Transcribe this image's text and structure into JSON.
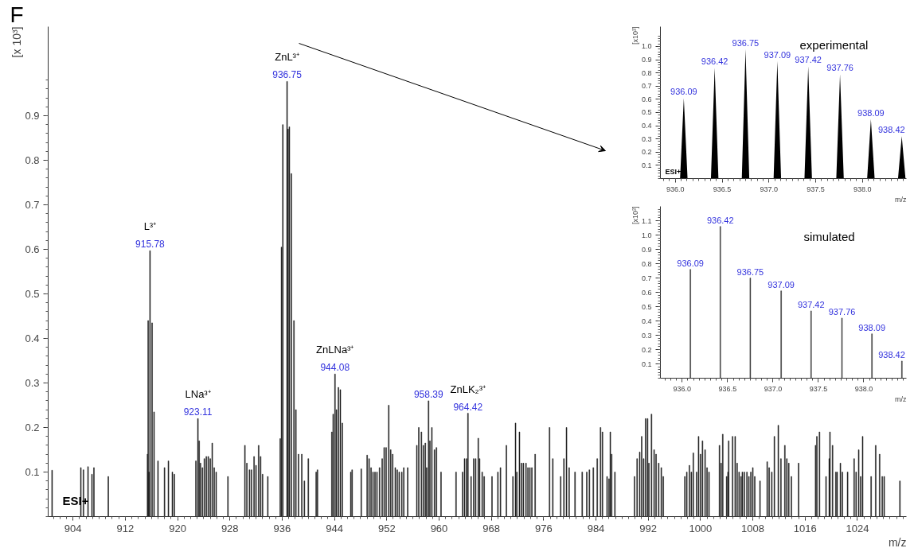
{
  "chart_data": [
    {
      "type": "bar",
      "title": "F",
      "xlabel": "m/z",
      "ylabel": "[x 10³]",
      "x": [
        900.8,
        905.2,
        905.6,
        906.3,
        906.9,
        907.2,
        909.4,
        915.4,
        915.5,
        915.6,
        915.78,
        916.1,
        916.4,
        917.0,
        918.0,
        918.6,
        919.2,
        919.5,
        922.8,
        923.11,
        923.3,
        923.5,
        923.8,
        924.1,
        924.4,
        924.7,
        925.0,
        925.3,
        925.6,
        925.9,
        927.7,
        930.3,
        930.6,
        931.0,
        931.3,
        931.7,
        932.0,
        932.4,
        932.7,
        933.0,
        933.8,
        935.7,
        935.9,
        936.1,
        936.75,
        936.9,
        937.1,
        937.4,
        937.8,
        938.1,
        938.5,
        939.0,
        939.4,
        940.0,
        941.2,
        941.4,
        943.6,
        943.8,
        944.08,
        944.3,
        944.6,
        944.9,
        945.2,
        946.5,
        946.7,
        948.1,
        949.0,
        949.3,
        949.6,
        949.9,
        950.2,
        950.5,
        950.9,
        951.3,
        951.6,
        951.9,
        952.3,
        952.6,
        952.9,
        953.3,
        953.6,
        953.9,
        954.3,
        954.6,
        955.2,
        956.6,
        956.9,
        957.3,
        957.6,
        957.9,
        958.1,
        958.39,
        958.6,
        958.9,
        959.3,
        959.6,
        960.3,
        962.6,
        963.6,
        963.9,
        964.2,
        964.42,
        964.9,
        965.3,
        965.6,
        966.0,
        966.2,
        966.6,
        966.9,
        968.1,
        969.0,
        969.4,
        970.3,
        971.3,
        971.7,
        971.9,
        972.3,
        972.6,
        972.9,
        973.3,
        973.6,
        973.9,
        974.2,
        974.7,
        976.9,
        977.4,
        978.6,
        979.1,
        979.5,
        979.9,
        980.8,
        981.9,
        982.6,
        983.0,
        983.6,
        984.2,
        984.7,
        985.0,
        985.7,
        986.0,
        986.2,
        986.4,
        986.9,
        989.9,
        990.3,
        990.7,
        991.0,
        991.3,
        991.6,
        991.9,
        992.1,
        992.5,
        992.9,
        993.2,
        993.6,
        994.0,
        994.3,
        997.6,
        997.9,
        998.3,
        998.6,
        998.9,
        999.4,
        999.7,
        1000.0,
        1000.3,
        1000.7,
        1001.0,
        1001.3,
        1002.9,
        1003.15,
        1003.4,
        1004.0,
        1004.2,
        1004.3,
        1004.9,
        1005.3,
        1005.6,
        1005.9,
        1006.2,
        1006.4,
        1006.7,
        1007.1,
        1007.4,
        1007.7,
        1008.0,
        1008.3,
        1009.1,
        1010.2,
        1010.5,
        1010.9,
        1011.3,
        1011.9,
        1012.3,
        1012.9,
        1013.2,
        1013.5,
        1013.9,
        1015.0,
        1017.6,
        1017.8,
        1018.2,
        1019.2,
        1019.7,
        1019.8,
        1020.2,
        1020.7,
        1020.9,
        1021.4,
        1021.7,
        1022.5,
        1023.5,
        1023.8,
        1024.2,
        1024.5,
        1024.8,
        1026.1,
        1026.8,
        1027.4,
        1027.8,
        1028.1,
        1030.5
      ],
      "series": [
        {
          "color": "#1a1a1a",
          "values": [
            0.104,
            0.11,
            0.105,
            0.112,
            0.095,
            0.11,
            0.09,
            0.14,
            0.44,
            0.1,
            0.597,
            0.435,
            0.235,
            0.125,
            0.11,
            0.125,
            0.1,
            0.095,
            0.125,
            0.22,
            0.17,
            0.12,
            0.11,
            0.13,
            0.135,
            0.135,
            0.13,
            0.165,
            0.11,
            0.1,
            0.09,
            0.16,
            0.12,
            0.105,
            0.105,
            0.135,
            0.115,
            0.16,
            0.135,
            0.095,
            0.09,
            0.175,
            0.605,
            0.88,
            0.977,
            0.87,
            0.875,
            0.77,
            0.44,
            0.24,
            0.14,
            0.14,
            0.08,
            0.13,
            0.1,
            0.105,
            0.19,
            0.23,
            0.32,
            0.24,
            0.29,
            0.285,
            0.21,
            0.1,
            0.105,
            0.107,
            0.138,
            0.13,
            0.11,
            0.1,
            0.1,
            0.1,
            0.11,
            0.13,
            0.155,
            0.155,
            0.25,
            0.15,
            0.14,
            0.11,
            0.105,
            0.1,
            0.1,
            0.11,
            0.11,
            0.16,
            0.2,
            0.19,
            0.16,
            0.165,
            0.11,
            0.26,
            0.17,
            0.2,
            0.15,
            0.155,
            0.1,
            0.1,
            0.1,
            0.13,
            0.13,
            0.232,
            0.09,
            0.13,
            0.13,
            0.176,
            0.13,
            0.1,
            0.09,
            0.09,
            0.1,
            0.11,
            0.16,
            0.09,
            0.21,
            0.1,
            0.19,
            0.12,
            0.12,
            0.12,
            0.11,
            0.11,
            0.11,
            0.14,
            0.2,
            0.13,
            0.09,
            0.13,
            0.2,
            0.11,
            0.1,
            0.1,
            0.1,
            0.105,
            0.11,
            0.13,
            0.2,
            0.19,
            0.09,
            0.085,
            0.19,
            0.14,
            0.1,
            0.09,
            0.13,
            0.145,
            0.18,
            0.13,
            0.22,
            0.22,
            0.12,
            0.23,
            0.15,
            0.14,
            0.12,
            0.11,
            0.09,
            0.09,
            0.1,
            0.115,
            0.1,
            0.143,
            0.1,
            0.18,
            0.14,
            0.17,
            0.15,
            0.11,
            0.1,
            0.16,
            0.12,
            0.185,
            0.09,
            0.1,
            0.17,
            0.18,
            0.18,
            0.12,
            0.1,
            0.09,
            0.1,
            0.1,
            0.1,
            0.09,
            0.1,
            0.11,
            0.09,
            0.08,
            0.123,
            0.11,
            0.1,
            0.18,
            0.205,
            0.13,
            0.16,
            0.13,
            0.12,
            0.09,
            0.12,
            0.16,
            0.18,
            0.19,
            0.09,
            0.13,
            0.19,
            0.16,
            0.1,
            0.1,
            0.12,
            0.1,
            0.1,
            0.13,
            0.1,
            0.15,
            0.09,
            0.18,
            0.09,
            0.16,
            0.14,
            0.09,
            0.09,
            0.08
          ]
        }
      ],
      "xlim": [
        900.2,
        1031.5
      ],
      "ylim": [
        0,
        1.1
      ],
      "xticks": [
        904,
        912,
        920,
        928,
        936,
        944,
        952,
        960,
        968,
        976,
        984,
        992,
        1000,
        1008,
        1016,
        1024
      ],
      "yticks": [
        0.1,
        0.2,
        0.3,
        0.4,
        0.5,
        0.6,
        0.7,
        0.8,
        0.9
      ],
      "annotations": [
        {
          "text": "915.78",
          "x": 915.78,
          "y": 0.597
        },
        {
          "text": "L³⁺",
          "x": 915.78,
          "y": 0.597
        },
        {
          "text": "923.11",
          "x": 923.11,
          "y": 0.22
        },
        {
          "text": "LNa³⁺",
          "x": 923.11,
          "y": 0.22
        },
        {
          "text": "936.75",
          "x": 936.75,
          "y": 0.977
        },
        {
          "text": "ZnL³⁺",
          "x": 936.75,
          "y": 0.977
        },
        {
          "text": "944.08",
          "x": 944.08,
          "y": 0.32
        },
        {
          "text": "ZnLNa³⁺",
          "x": 944.08,
          "y": 0.32
        },
        {
          "text": "958.39",
          "x": 958.39,
          "y": 0.26
        },
        {
          "text": "964.42",
          "x": 964.42,
          "y": 0.232
        },
        {
          "text": "ZnLK₂³⁺",
          "x": 964.42,
          "y": 0.232
        },
        "ESI+"
      ]
    },
    {
      "type": "area",
      "xlabel": "m/z",
      "ylabel": "[x10³]",
      "x": [
        936.05,
        936.09,
        936.13,
        936.38,
        936.42,
        936.46,
        936.71,
        936.75,
        936.79,
        937.05,
        937.09,
        937.13,
        937.38,
        937.42,
        937.46,
        937.72,
        937.76,
        937.8,
        938.05,
        938.09,
        938.13,
        938.38,
        938.42,
        938.46
      ],
      "series": [
        {
          "color": "#000000",
          "values": [
            0,
            0.61,
            0,
            0,
            0.84,
            0,
            0,
            0.98,
            0,
            0,
            0.89,
            0,
            0,
            0.85,
            0,
            0,
            0.79,
            0,
            0,
            0.45,
            0,
            0,
            0.32,
            0
          ]
        }
      ],
      "xlim": [
        935.84,
        938.47
      ],
      "ylim": [
        0,
        1.15
      ],
      "xticks": [
        {
          "value": 936,
          "label": "936.0"
        },
        {
          "value": 936.5,
          "label": "936.5"
        },
        {
          "value": 937,
          "label": "937.0"
        },
        {
          "value": 937.5,
          "label": "937.5"
        },
        {
          "value": 938,
          "label": "938.0"
        }
      ],
      "yticks": [
        0.1,
        0.2,
        0.3,
        0.4,
        0.5,
        0.6,
        0.7,
        0.8,
        0.9,
        {
          "value": 1,
          "label": "1.0"
        }
      ],
      "annotations": [
        {
          "text": "936.09",
          "x": 936.09,
          "y": 0.61
        },
        {
          "text": "936.42",
          "x": 936.42,
          "y": 0.84
        },
        {
          "text": "936.75",
          "x": 936.75,
          "y": 0.98
        },
        {
          "text": "937.09",
          "x": 937.09,
          "y": 0.89
        },
        {
          "text": "937.42",
          "x": 937.42,
          "y": 0.85
        },
        {
          "text": "937.76",
          "x": 937.76,
          "y": 0.79
        },
        {
          "text": "938.09",
          "x": 938.09,
          "y": 0.45
        },
        {
          "text": "938.42",
          "x": 938.42,
          "y": 0.32
        },
        "experimental",
        "ESI+"
      ]
    },
    {
      "type": "bar",
      "xlabel": "m/z",
      "ylabel": "[x10³]",
      "x": [
        936.09,
        936.42,
        936.75,
        937.09,
        937.42,
        937.76,
        938.09,
        938.42
      ],
      "series": [
        {
          "color": "#333333",
          "values": [
            0.76,
            1.06,
            0.7,
            0.61,
            0.47,
            0.42,
            0.31,
            0.12
          ]
        }
      ],
      "xlim": [
        935.76,
        938.47
      ],
      "ylim": [
        0,
        1.2
      ],
      "xticks": [
        {
          "value": 936,
          "label": "936.0"
        },
        {
          "value": 936.5,
          "label": "936.5"
        },
        {
          "value": 937,
          "label": "937.0"
        },
        {
          "value": 937.5,
          "label": "937.5"
        },
        {
          "value": 938,
          "label": "938.0"
        }
      ],
      "yticks": [
        0.1,
        0.2,
        0.3,
        0.4,
        0.5,
        0.6,
        0.7,
        0.8,
        0.9,
        {
          "value": 1,
          "label": "1.0"
        },
        1.1
      ],
      "annotations": [
        {
          "text": "936.09",
          "x": 936.09,
          "y": 0.76
        },
        {
          "text": "936.42",
          "x": 936.42,
          "y": 1.06
        },
        {
          "text": "936.75",
          "x": 936.75,
          "y": 0.7
        },
        {
          "text": "937.09",
          "x": 937.09,
          "y": 0.61
        },
        {
          "text": "937.42",
          "x": 937.42,
          "y": 0.47
        },
        {
          "text": "937.76",
          "x": 937.76,
          "y": 0.42
        },
        {
          "text": "938.09",
          "x": 938.09,
          "y": 0.31
        },
        {
          "text": "938.42",
          "x": 938.42,
          "y": 0.12
        },
        "simulated"
      ]
    }
  ]
}
